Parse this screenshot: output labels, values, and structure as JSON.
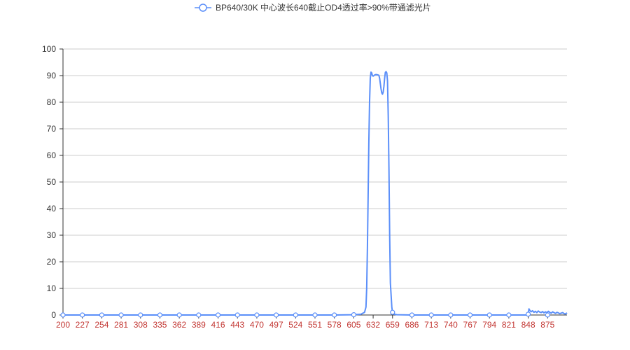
{
  "chart_data": {
    "type": "line",
    "title": "",
    "xlabel": "",
    "ylabel": "",
    "xlim": [
      200,
      902
    ],
    "ylim": [
      0,
      100
    ],
    "yticks": [
      0,
      10,
      20,
      30,
      40,
      50,
      60,
      70,
      80,
      90,
      100
    ],
    "xticks": [
      200,
      227,
      254,
      281,
      308,
      335,
      362,
      389,
      416,
      443,
      470,
      497,
      524,
      551,
      578,
      605,
      632,
      659,
      686,
      713,
      740,
      767,
      794,
      821,
      848,
      875
    ],
    "grid": true,
    "legend_position": "top-center",
    "colors": {
      "series": "#5b8ff9",
      "axis": "#333333",
      "grid": "#cccccc",
      "xtick_text": "#c23531"
    },
    "series": [
      {
        "name": "BP640/30K 中心波长640截止OD4透过率>90%带通滤光片",
        "x": [
          200,
          227,
          254,
          281,
          308,
          335,
          362,
          389,
          416,
          443,
          470,
          497,
          524,
          551,
          578,
          605,
          615,
          620,
          622,
          623,
          624,
          625,
          626,
          627,
          628,
          629,
          630,
          631,
          632,
          634,
          636,
          638,
          640,
          641,
          642,
          643,
          644,
          645,
          646,
          647,
          648,
          649,
          650,
          651,
          652,
          653,
          654,
          655,
          656,
          658,
          659,
          660,
          665,
          686,
          713,
          740,
          767,
          794,
          821,
          845,
          848,
          849,
          850,
          852,
          854,
          856,
          858,
          860,
          862,
          864,
          866,
          868,
          870,
          872,
          874,
          876,
          878,
          880,
          882,
          884,
          886,
          888,
          890,
          892,
          894,
          896,
          898,
          900,
          902
        ],
        "y": [
          0,
          0,
          0,
          0,
          0,
          0,
          0,
          0,
          0,
          0,
          0,
          0,
          0,
          0,
          0,
          0.1,
          0.3,
          1.0,
          3.0,
          10,
          25,
          45,
          65,
          80,
          89,
          91.3,
          91,
          90,
          89.8,
          90.2,
          90.4,
          90.3,
          90.1,
          89,
          87,
          85,
          83.5,
          83,
          83.8,
          86,
          89,
          91.2,
          91.5,
          91,
          88,
          75,
          55,
          30,
          12,
          3,
          1.0,
          0.4,
          0.1,
          0,
          0,
          0,
          0,
          0,
          0,
          0,
          0.3,
          2.3,
          1.8,
          1.2,
          1.6,
          1.0,
          1.4,
          0.9,
          1.5,
          1.1,
          0.9,
          1.3,
          0.8,
          1.2,
          0.9,
          1.4,
          1.0,
          0.7,
          1.2,
          0.9,
          0.6,
          1.0,
          0.8,
          0.5,
          0.7,
          0.9,
          0.5,
          0.4,
          0.8
        ]
      }
    ]
  }
}
